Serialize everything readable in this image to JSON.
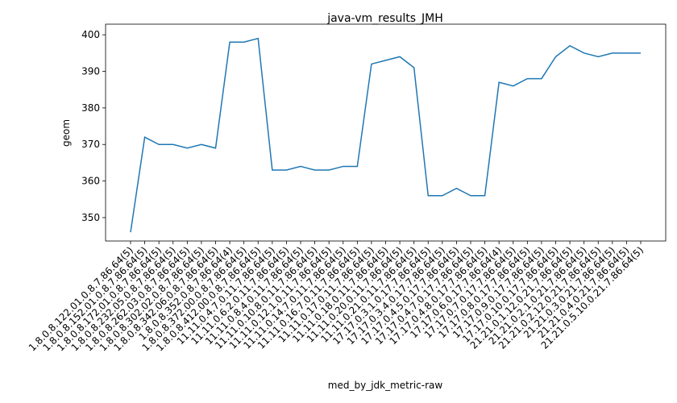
{
  "chart_data": {
    "type": "line",
    "title": "java-vm_results_JMH",
    "x_label": "med_by_jdk_metric-raw",
    "y_label": "geom",
    "categories": [
      "1.8.0.8.122.01.0.8.7.86.64(5)",
      "1.8.0.8.152.01.0.8.7.86.64(5)",
      "1.8.0.8.172.01.0.8.7.86.64(5)",
      "1.8.0.8.232.05.0.8.7.86.64(5)",
      "1.8.0.8.262.03.0.8.7.86.64(5)",
      "1.8.0.8.302.02.0.8.7.86.64(5)",
      "1.8.0.8.342.06.0.8.7.86.64(5)",
      "1.8.0.8.352.0.8.7.86.64(4)",
      "1.8.0.8.372.00.0.8.7.86.64(5)",
      "1.8.0.8.412.00.0.8.7.86.64(5)",
      "11.11.0.4.7.0.11.7.86.64(5)",
      "11.11.0.6.2.0.11.7.86.64(5)",
      "11.11.0.8.4.0.11.7.86.64(5)",
      "11.11.0.10.8.0.11.7.86.64(5)",
      "11.11.0.12.1.0.11.7.86.64(5)",
      "11.11.0.14.7.0.11.7.86.64(5)",
      "11.11.0.16.7.0.11.7.86.64(5)",
      "11.11.0.17.0.11.7.86.64(5)",
      "11.11.0.18.0.11.7.86.64(5)",
      "11.11.0.20.0.11.7.86.64(5)",
      "11.11.0.21.0.11.7.86.64(5)",
      "17.17.0.3.1.0.17.7.86.64(5)",
      "17.17.0.3.4.0.17.7.86.64(5)",
      "17.17.0.4.5.0.17.7.86.64(5)",
      "17.17.0.4.7.0.17.7.86.64(5)",
      "17.17.0.4.8.0.17.7.86.64(5)",
      "17.17.0.6.0.17.7.86.64(4)",
      "17.17.0.7.0.17.7.86.64(5)",
      "17.17.0.8.0.17.7.86.64(5)",
      "17.17.0.9.0.17.7.86.64(5)",
      "17.17.0.10.0.17.7.86.64(5)",
      "21.21.0.1.12.0.21.7.86.64(5)",
      "21.21.0.2.1.0.21.7.86.64(5)",
      "21.21.0.2.12.0.21.7.86.64(5)",
      "21.21.0.3.0.21.7.86.64(5)",
      "21.21.0.4.0.21.7.86.64(5)",
      "21.21.0.5.10.0.21.7.86.64(5)"
    ],
    "series": [
      {
        "color": "#1f77b4",
        "values": [
          346,
          372,
          370,
          370,
          369,
          370,
          369,
          398,
          398,
          399,
          363,
          363,
          364,
          363,
          363,
          364,
          364,
          392,
          393,
          394,
          391,
          356,
          356,
          358,
          356,
          356,
          387,
          386,
          388,
          388,
          394,
          397,
          395,
          394,
          395,
          395,
          395
        ]
      }
    ],
    "ylim": [
      343.6,
      402.9
    ],
    "yticks": [
      350,
      360,
      370,
      380,
      390,
      400
    ],
    "grid": false
  }
}
